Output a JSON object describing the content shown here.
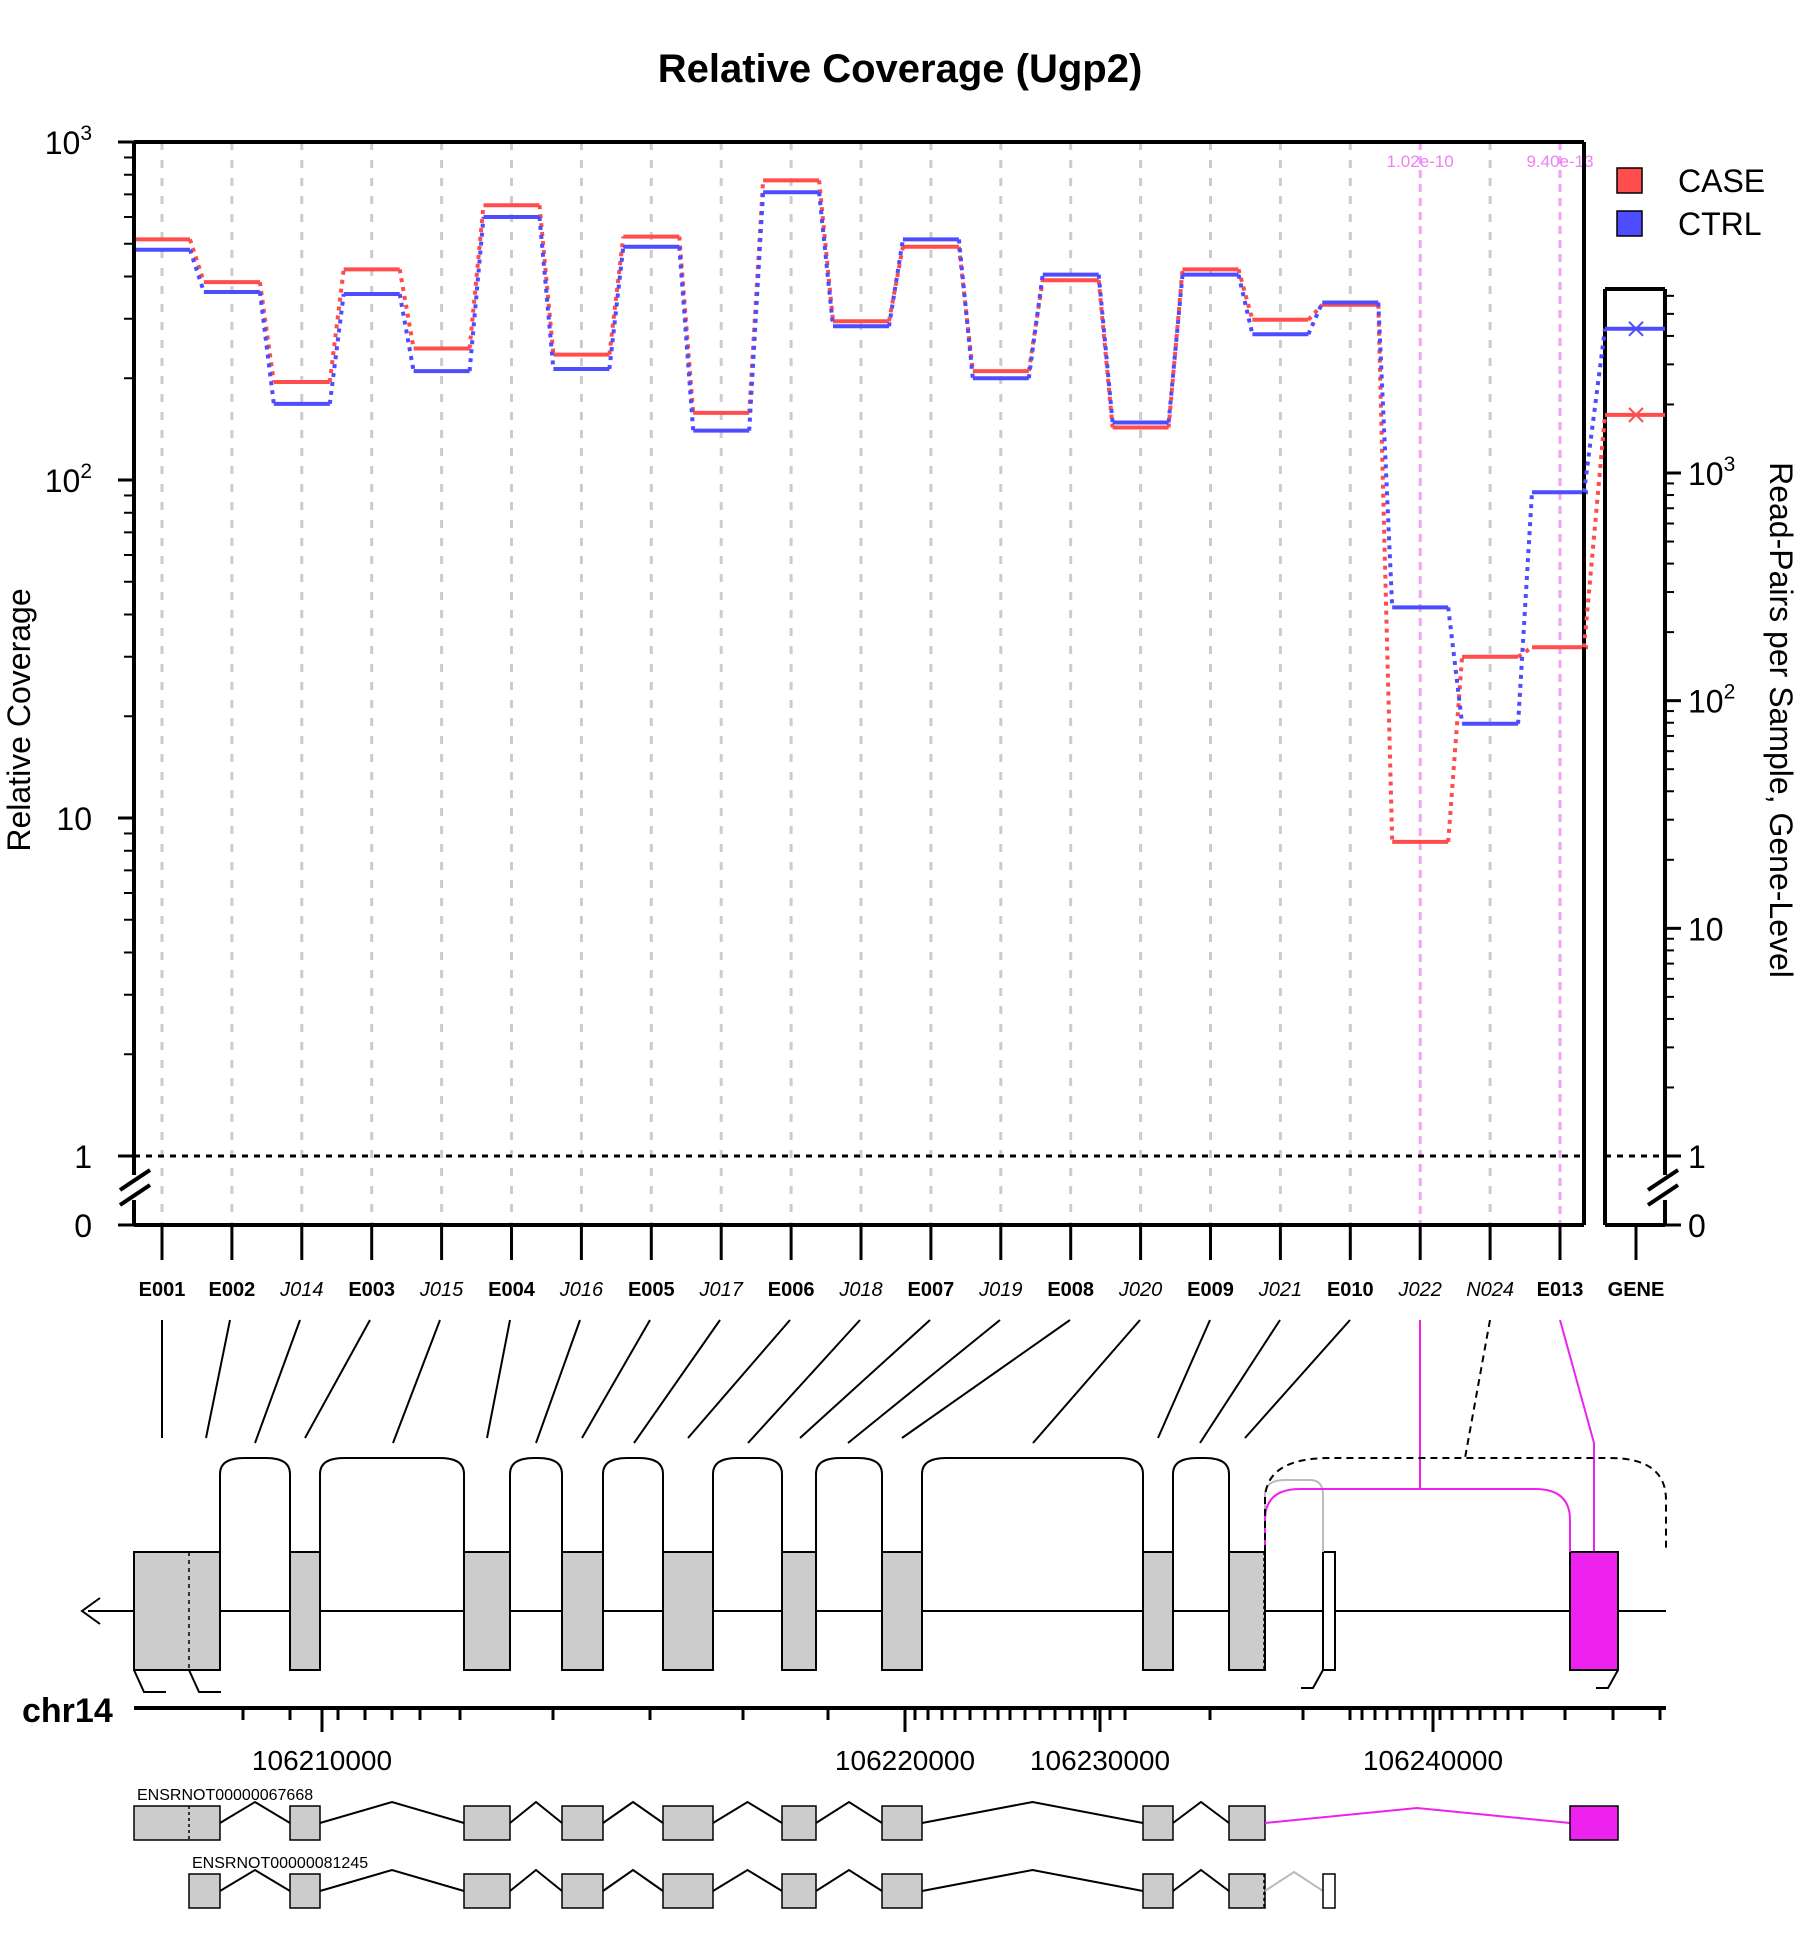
{
  "chart_data": {
    "type": "line",
    "title": "Relative Coverage (Ugp2)",
    "ylabel": "Relative Coverage",
    "y2label": "Read-Pairs per Sample, Gene-Level",
    "yscale": "log",
    "ylim": [
      0,
      1000
    ],
    "y_ticks": [
      {
        "value": 1000,
        "label": "10",
        "sup": "3"
      },
      {
        "value": 100,
        "label": "10",
        "sup": "2"
      },
      {
        "value": 10,
        "label": "10",
        "sup": ""
      },
      {
        "value": 1,
        "label": "1",
        "sup": ""
      },
      {
        "value": 0,
        "label": "0",
        "sup": ""
      }
    ],
    "y2_ticks": [
      {
        "value": 1000,
        "label": "10",
        "sup": "3"
      },
      {
        "value": 100,
        "label": "10",
        "sup": "2"
      },
      {
        "value": 10,
        "label": "10",
        "sup": ""
      },
      {
        "value": 1,
        "label": "1",
        "sup": ""
      },
      {
        "value": 0,
        "label": "0",
        "sup": ""
      }
    ],
    "categories": [
      "E001",
      "E002",
      "J014",
      "E003",
      "J015",
      "E004",
      "J016",
      "E005",
      "J017",
      "E006",
      "J018",
      "E007",
      "J019",
      "E008",
      "J020",
      "E009",
      "J021",
      "E010",
      "J022",
      "N024",
      "E013"
    ],
    "junction_categories": [
      "J014",
      "J015",
      "J016",
      "J017",
      "J018",
      "J019",
      "J020",
      "J021",
      "J022",
      "N024"
    ],
    "series": [
      {
        "name": "CASE",
        "color": "#ff4d4d",
        "values": [
          515,
          385,
          195,
          420,
          245,
          650,
          235,
          525,
          158,
          770,
          295,
          490,
          210,
          390,
          143,
          420,
          298,
          330,
          8.5,
          30,
          32
        ]
      },
      {
        "name": "CTRL",
        "color": "#4d4dff",
        "values": [
          480,
          360,
          168,
          355,
          210,
          600,
          213,
          490,
          140,
          710,
          285,
          515,
          200,
          405,
          148,
          405,
          270,
          335,
          42,
          19,
          92
        ]
      }
    ],
    "gene_level": {
      "label": "GENE",
      "CASE": 1800,
      "CTRL": 4300,
      "ylim": [
        0,
        6000
      ]
    },
    "significant": [
      {
        "category": "J022",
        "pvalue": "1.02e-10"
      },
      {
        "category": "E013",
        "pvalue": "9.40e-13"
      }
    ],
    "reference_line": 1,
    "legend": {
      "position": "top-right",
      "entries": [
        "CASE",
        "CTRL"
      ]
    },
    "grid": "vertical dashed"
  },
  "gene_model": {
    "strand": "minus",
    "chromosome": "chr14",
    "axis_ticks": [
      "106210000",
      "106220000",
      "106230000",
      "106240000"
    ],
    "axis_tick_values": [
      106210000,
      106220000,
      106230000,
      106240000
    ],
    "transcripts": [
      {
        "name": "ENSRNOT00000067668"
      },
      {
        "name": "ENSRNOT00000081245"
      }
    ]
  },
  "colors": {
    "case": "#ff4d4d",
    "ctrl": "#4d4dff",
    "significant": "#ee22ee",
    "exon_fill": "#cccccc",
    "pvalue_text": "#f080f0"
  }
}
